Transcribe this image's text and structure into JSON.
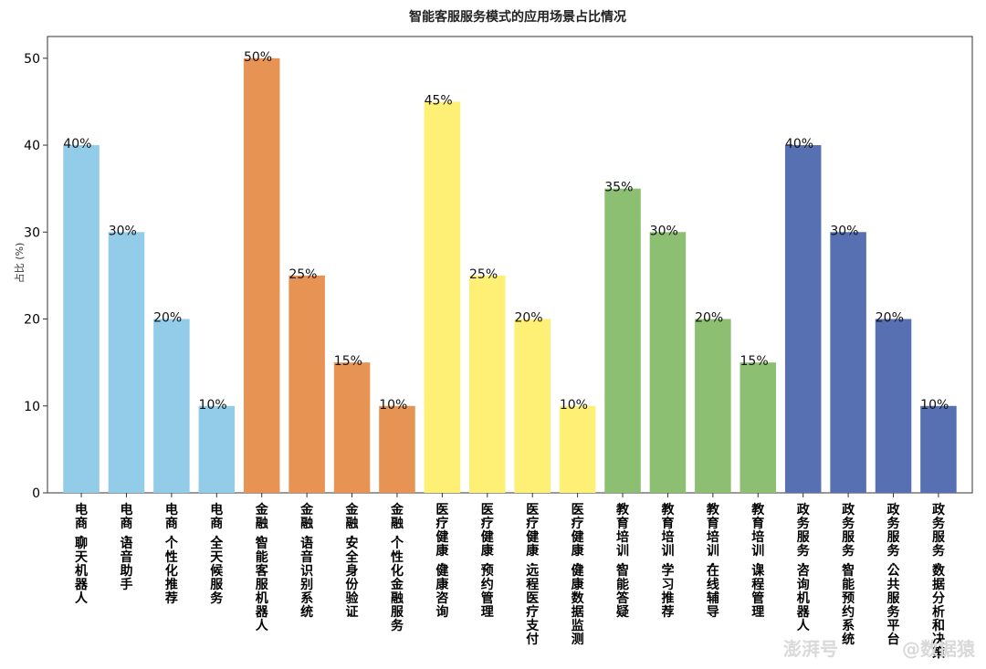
{
  "chart_data": {
    "type": "bar",
    "title": "智能客服服务模式的应用场景占比情况",
    "xlabel": "",
    "ylabel": "占比 (%)",
    "ylim": [
      0,
      52.5
    ],
    "yticks": [
      0,
      10,
      20,
      30,
      40,
      50
    ],
    "grid": false,
    "legend": "none",
    "categories": [
      "电商-聊天机器人",
      "电商-语音助手",
      "电商-个性化推荐",
      "电商-全天候服务",
      "金融-智能客服机器人",
      "金融-语音识别系统",
      "金融-安全身份验证",
      "金融-个性化金融服务",
      "医疗健康-健康咨询",
      "医疗健康-预约管理",
      "医疗健康-远程医疗支付",
      "医疗健康-健康数据监测",
      "教育培训-智能答疑",
      "教育培训-学习推荐",
      "教育培训-在线辅导",
      "教育培训-课程管理",
      "政务服务-咨询机器人",
      "政务服务-智能预约系统",
      "政务服务-公共服务平台",
      "政务服务-数据分析和决策"
    ],
    "values": [
      40,
      30,
      20,
      10,
      50,
      25,
      15,
      10,
      45,
      25,
      20,
      10,
      35,
      30,
      20,
      15,
      40,
      30,
      20,
      10
    ],
    "value_labels": [
      "40%",
      "30%",
      "20%",
      "10%",
      "50%",
      "25%",
      "15%",
      "10%",
      "45%",
      "25%",
      "20%",
      "10%",
      "35%",
      "30%",
      "20%",
      "15%",
      "40%",
      "30%",
      "20%",
      "10%"
    ],
    "bar_colors": [
      "#92cce9",
      "#92cce9",
      "#92cce9",
      "#92cce9",
      "#e69354",
      "#e69354",
      "#e69354",
      "#e69354",
      "#fdf074",
      "#fdf074",
      "#fdf074",
      "#fdf074",
      "#8cbf72",
      "#8cbf72",
      "#8cbf72",
      "#8cbf72",
      "#5670b2",
      "#5670b2",
      "#5670b2",
      "#5670b2"
    ]
  },
  "watermark": {
    "left": "澎湃号",
    "right": "@数据猿"
  }
}
